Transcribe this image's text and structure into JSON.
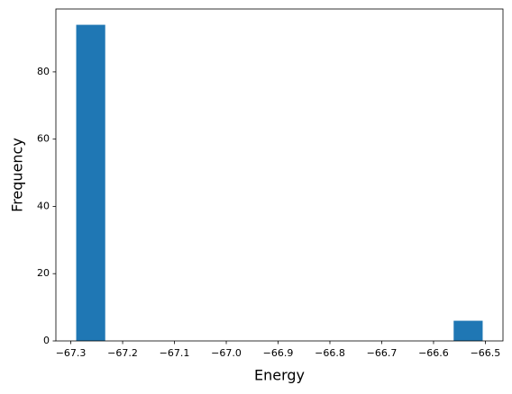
{
  "chart_data": {
    "type": "histogram",
    "x_label": "Energy",
    "y_label": "Frequency",
    "bins": [
      -67.2896,
      -67.2336,
      -67.1775,
      -67.1215,
      -67.0655,
      -67.0094,
      -66.9534,
      -66.8974,
      -66.8414,
      -66.7853,
      -66.7293,
      -66.6733,
      -66.6172,
      -66.5612,
      -66.5052
    ],
    "counts": [
      94,
      0,
      0,
      0,
      0,
      0,
      0,
      0,
      0,
      0,
      0,
      0,
      0,
      6
    ],
    "color": "#1f77b4",
    "xlim": [
      -67.3288,
      -66.466
    ],
    "xticks": [
      {
        "value": -67.3,
        "label": "−67.3"
      },
      {
        "value": -67.2,
        "label": "−67.2"
      },
      {
        "value": -67.1,
        "label": "−67.1"
      },
      {
        "value": -67.0,
        "label": "−67.0"
      },
      {
        "value": -66.9,
        "label": "−66.9"
      },
      {
        "value": -66.8,
        "label": "−66.8"
      },
      {
        "value": -66.7,
        "label": "−66.7"
      },
      {
        "value": -66.6,
        "label": "−66.6"
      },
      {
        "value": -66.5,
        "label": "−66.5"
      }
    ],
    "ylim": [
      0,
      98.7
    ],
    "yticks": [
      0,
      20,
      40,
      60,
      80
    ]
  }
}
